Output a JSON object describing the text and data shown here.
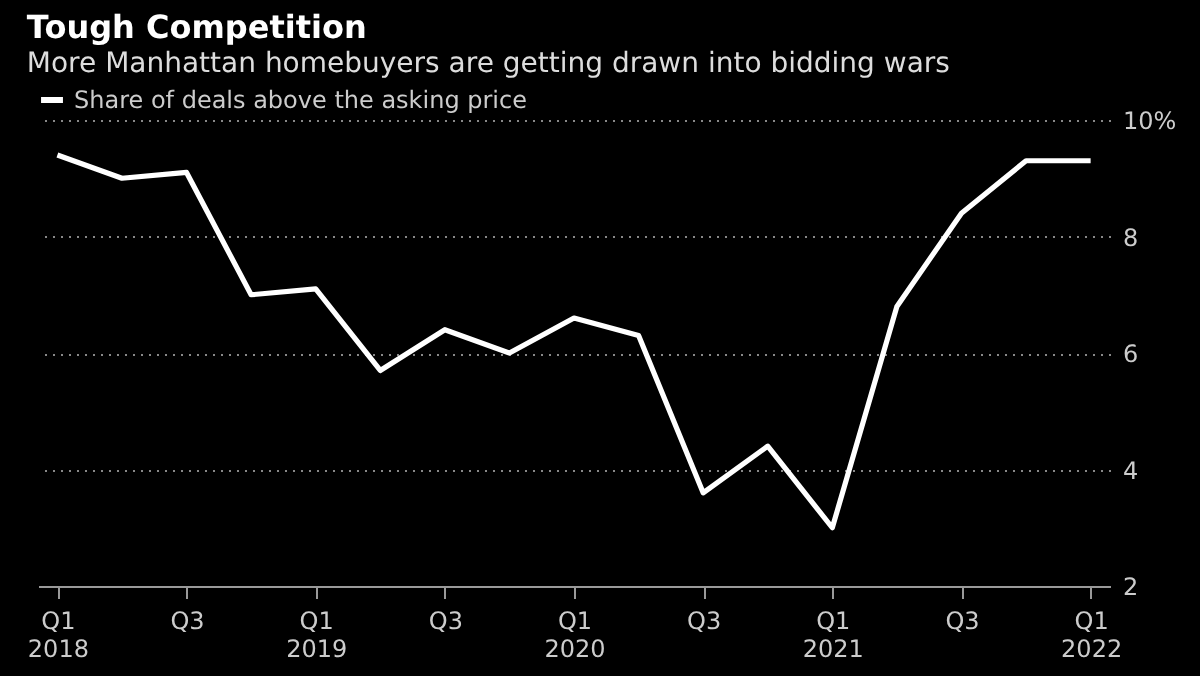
{
  "chart_data": {
    "type": "line",
    "title": "Tough Competition",
    "subtitle": "More Manhattan homebuyers are getting drawn into bidding wars",
    "categories": [
      "Q1 2018",
      null,
      "Q3",
      null,
      "Q1 2019",
      null,
      "Q3",
      null,
      "Q1 2020",
      null,
      "Q3",
      null,
      "Q1 2021",
      null,
      "Q3",
      null,
      "Q1 2022"
    ],
    "series": [
      {
        "name": "Share of deals above the asking price",
        "color": "#ffffff",
        "values": [
          9.4,
          9.0,
          9.1,
          7.0,
          7.1,
          5.7,
          6.4,
          6.0,
          6.6,
          6.3,
          3.6,
          4.4,
          3.0,
          6.8,
          8.4,
          9.3,
          9.3
        ]
      }
    ],
    "ylim": [
      2,
      10
    ],
    "yticks": [
      2,
      4,
      6,
      8,
      {
        "value": 10,
        "label": "10%"
      }
    ],
    "grid": "y",
    "legend": "top left",
    "marker": "none",
    "line_style": "solid"
  }
}
